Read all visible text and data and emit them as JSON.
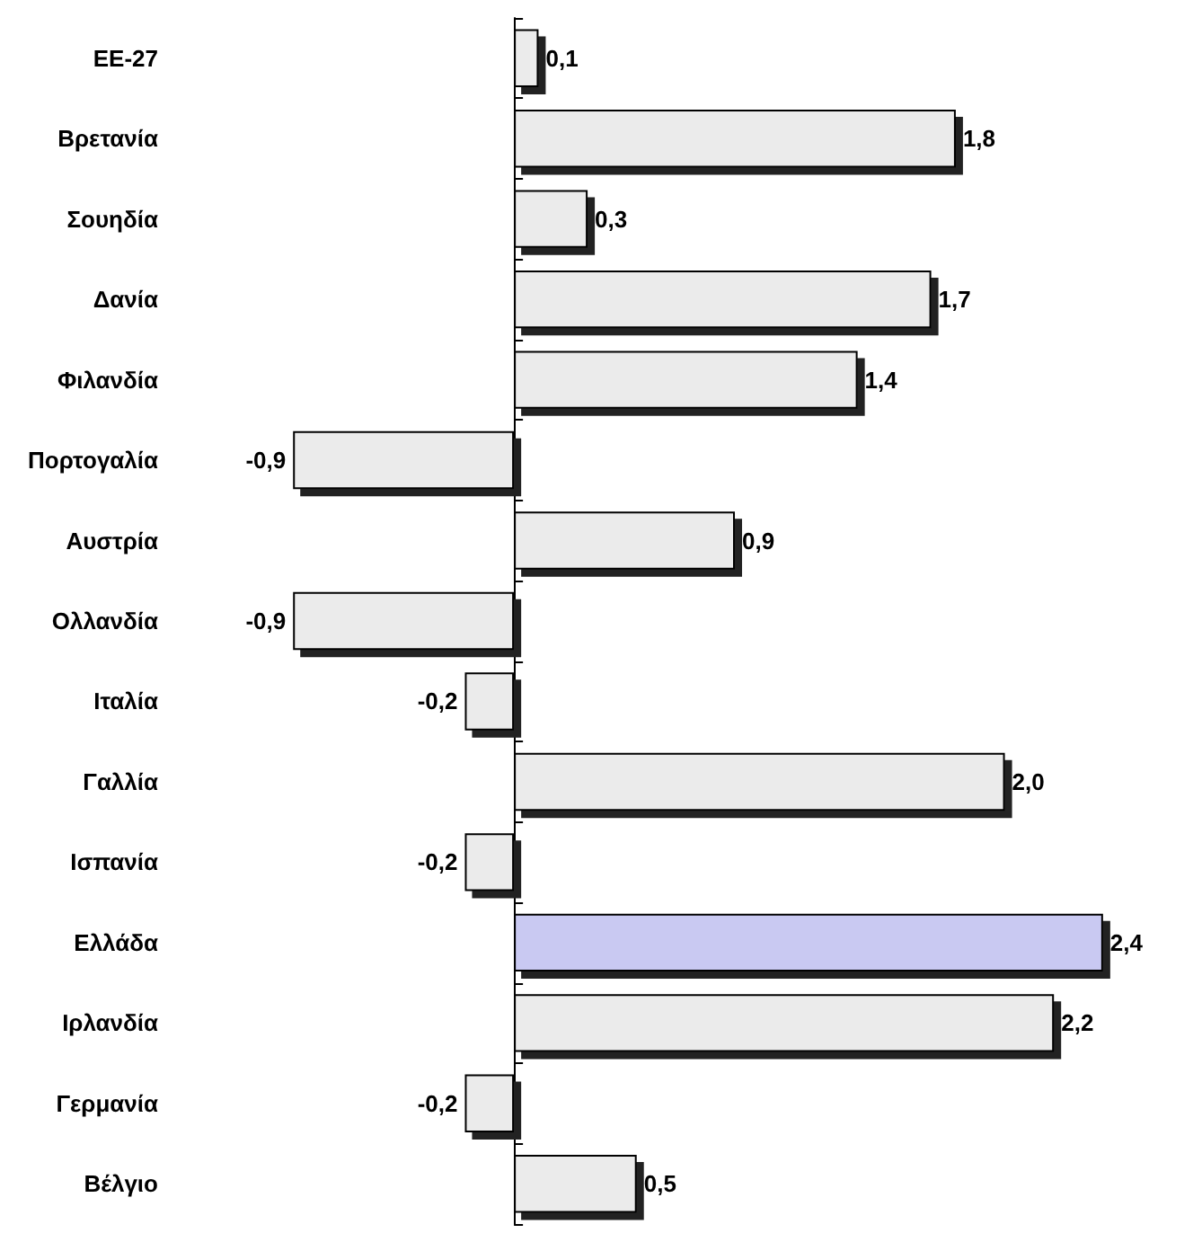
{
  "chart_data": {
    "type": "bar",
    "orientation": "horizontal",
    "categories": [
      "EE-27",
      "Βρετανία",
      "Σουηδία",
      "Δανία",
      "Φιλανδία",
      "Πορτογαλία",
      "Αυστρία",
      "Ολλανδία",
      "Ιταλία",
      "Γαλλία",
      "Ισπανία",
      "Ελλάδα",
      "Ιρλανδία",
      "Γερμανία",
      "Βέλγιο"
    ],
    "values": [
      0.1,
      1.8,
      0.3,
      1.7,
      1.4,
      -0.9,
      0.9,
      -0.9,
      -0.2,
      2.0,
      -0.2,
      2.4,
      2.2,
      -0.2,
      0.5
    ],
    "value_labels": [
      "0,1",
      "1,8",
      "0,3",
      "1,7",
      "1,4",
      "-0,9",
      "0,9",
      "-0,9",
      "-0,2",
      "2,0",
      "-0,2",
      "2,4",
      "2,2",
      "-0,2",
      "0,5"
    ],
    "colors": [
      "#ebebeb",
      "#ebebeb",
      "#ebebeb",
      "#ebebeb",
      "#ebebeb",
      "#ebebeb",
      "#ebebeb",
      "#ebebeb",
      "#ebebeb",
      "#ebebeb",
      "#ebebeb",
      "#c9c9f2",
      "#ebebeb",
      "#ebebeb",
      "#ebebeb"
    ],
    "grid": false
  }
}
